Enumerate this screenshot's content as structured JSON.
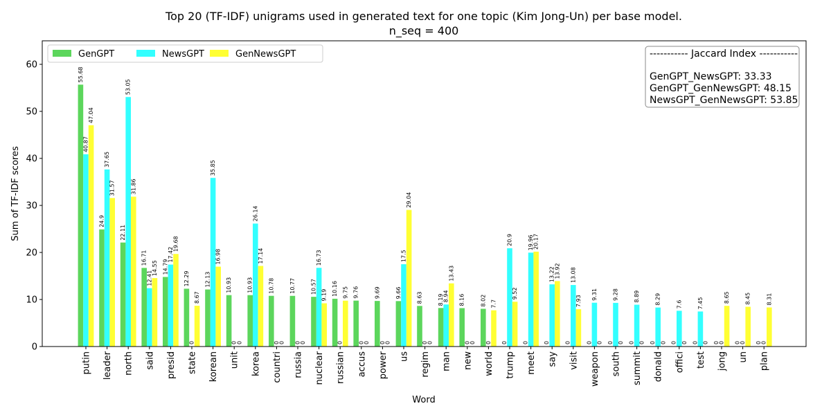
{
  "chart_data": {
    "type": "bar",
    "title": "Top 20 (TF-IDF) unigrams used in generated text for one topic (Kim Jong-Un) per base model.",
    "subtitle": "n_seq = 400",
    "xlabel": "Word",
    "ylabel": "Sum of TF-IDF scores",
    "ylim": [
      0,
      65
    ],
    "yticks": [
      0,
      10,
      20,
      30,
      40,
      50,
      60
    ],
    "legend_placement": "top-left",
    "categories": [
      "putin",
      "leader",
      "north",
      "said",
      "presid",
      "state",
      "korean",
      "unit",
      "korea",
      "countri",
      "russia",
      "nuclear",
      "russian",
      "accus",
      "power",
      "us",
      "regim",
      "man",
      "new",
      "world",
      "trump",
      "meet",
      "say",
      "visit",
      "weapon",
      "south",
      "summit",
      "donald",
      "offici",
      "test",
      "jong",
      "un",
      "plan"
    ],
    "series": [
      {
        "name": "GenGPT",
        "color": "#5cd65c",
        "values": [
          55.68,
          24.9,
          22.11,
          16.71,
          14.79,
          12.29,
          12.13,
          10.93,
          10.93,
          10.78,
          10.77,
          10.57,
          10.16,
          9.76,
          9.69,
          9.66,
          8.63,
          8.19,
          8.16,
          8.02,
          0,
          0,
          0,
          0,
          0,
          0,
          0,
          0,
          0,
          0,
          0,
          0,
          0
        ]
      },
      {
        "name": "NewsGPT",
        "color": "#33ffff",
        "values": [
          40.87,
          37.65,
          53.05,
          12.41,
          17.42,
          0,
          35.85,
          0,
          26.14,
          0,
          0,
          16.73,
          0,
          0,
          0,
          17.5,
          0,
          8.94,
          0,
          0,
          20.9,
          19.96,
          13.22,
          13.08,
          9.31,
          9.28,
          8.89,
          8.29,
          7.6,
          7.45,
          0,
          0,
          0
        ]
      },
      {
        "name": "GenNewsGPT",
        "color": "#ffff33",
        "values": [
          47.04,
          31.57,
          31.86,
          14.55,
          19.68,
          8.67,
          16.98,
          0,
          17.14,
          0,
          0,
          9.19,
          9.75,
          0,
          0,
          29.04,
          0,
          13.43,
          0,
          7.7,
          9.52,
          20.17,
          13.92,
          7.93,
          0,
          0,
          0,
          0,
          0,
          0,
          8.65,
          8.45,
          8.31
        ]
      }
    ],
    "jaccard": {
      "header": "----------- Jaccard Index -----------",
      "lines": [
        "GenGPT_NewsGPT: 33.33",
        "GenGPT_GenNewsGPT: 48.15",
        "NewsGPT_GenNewsGPT: 53.85"
      ]
    }
  }
}
